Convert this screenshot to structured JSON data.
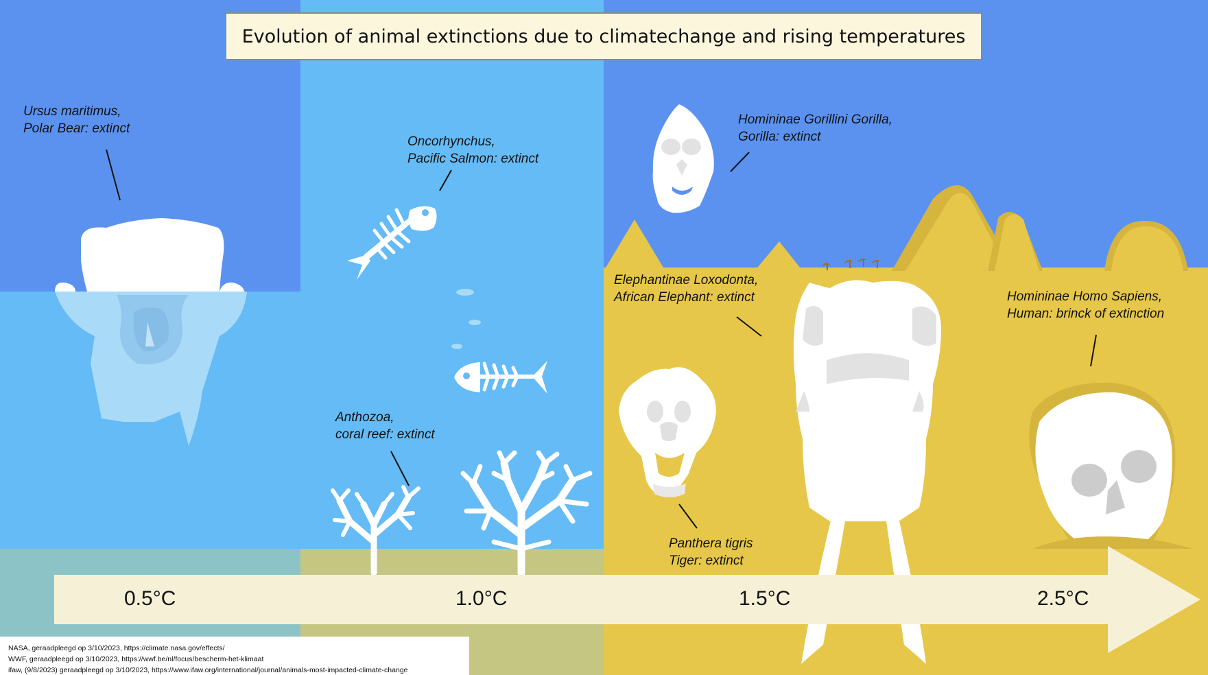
{
  "title": "Evolution of animal extinctions due to climatechange and rising temperatures",
  "timeline": {
    "temperatures": [
      "0.5°C",
      "1.0°C",
      "1.5°C",
      "2.5°C"
    ]
  },
  "species": [
    {
      "scientific": "Ursus maritimus,",
      "status": "Polar Bear: extinct",
      "icon": "polar-bear-skull-icon"
    },
    {
      "scientific": "Oncorhynchus,",
      "status": "Pacific Salmon: extinct",
      "icon": "fish-skeleton-icon"
    },
    {
      "scientific": "Anthozoa,",
      "status": "coral reef: extinct",
      "icon": "coral-icon"
    },
    {
      "scientific": "Homininae Gorillini Gorilla,",
      "status": "Gorilla: extinct",
      "icon": "gorilla-skull-icon"
    },
    {
      "scientific": "Elephantinae Loxodonta,",
      "status": "African Elephant: extinct",
      "icon": "elephant-skull-icon"
    },
    {
      "scientific": "Panthera tigris",
      "status": "Tiger: extinct",
      "icon": "tiger-skull-icon"
    },
    {
      "scientific": "Homininae Homo Sapiens,",
      "status": "Human: brinck of extinction",
      "icon": "human-skull-icon"
    }
  ],
  "sources": [
    "NASA, geraadpleegd op 3/10/2023, https://climate.nasa.gov/effects/",
    "WWF, geraadpleegd op 3/10/2023, https://wwf.be/nl/focus/bescherm-het-klimaat",
    "ifaw, (9/8/2023) geraadpleegd op 3/10/2023, https://www.ifaw.org/international/journal/animals-most-impacted-climate-change"
  ],
  "colors": {
    "sky": "#5b92f0",
    "water": "#64bbf5",
    "sand": "#e6c74a",
    "arrow": "#f6f1d6",
    "bone": "#ffffff"
  }
}
